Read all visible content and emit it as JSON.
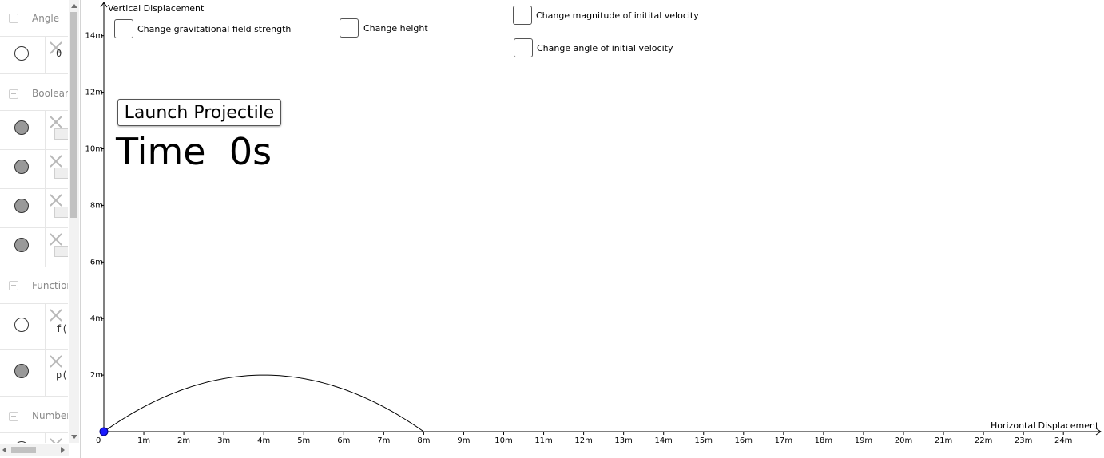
{
  "algebra": {
    "categories": {
      "angle": "Angle",
      "boolean": "Boolean",
      "function": "Function",
      "number": "Number"
    },
    "items": {
      "angle_theta": "θ =",
      "function_f": "f(x",
      "function_p": "p(x"
    }
  },
  "graphics": {
    "y_axis_title": "Vertical Displacement",
    "x_axis_title": "Horizontal Displacement",
    "origin_label": "0",
    "x_ticks": [
      "1m",
      "2m",
      "3m",
      "4m",
      "5m",
      "6m",
      "7m",
      "8m",
      "9m",
      "10m",
      "11m",
      "12m",
      "13m",
      "14m",
      "15m",
      "16m",
      "17m",
      "18m",
      "19m",
      "20m",
      "21m",
      "22m",
      "23m",
      "24m"
    ],
    "y_ticks": [
      "2m",
      "4m",
      "6m",
      "8m",
      "10m",
      "12m",
      "14m"
    ],
    "checkboxes": {
      "gravity": "Change gravitational field strength",
      "height": "Change height",
      "magnitude": "Change magnitude of initital velocity",
      "angle": "Change angle of initial velocity"
    },
    "launch_button": "Launch Projectile",
    "time_label": "Time  0s",
    "trajectory": {
      "x_start": 0,
      "x_peak": 4,
      "y_peak": 2,
      "x_end": 8
    },
    "colors": {
      "projectile_point": "#1a1aff",
      "point_outline": "#00007f"
    }
  }
}
